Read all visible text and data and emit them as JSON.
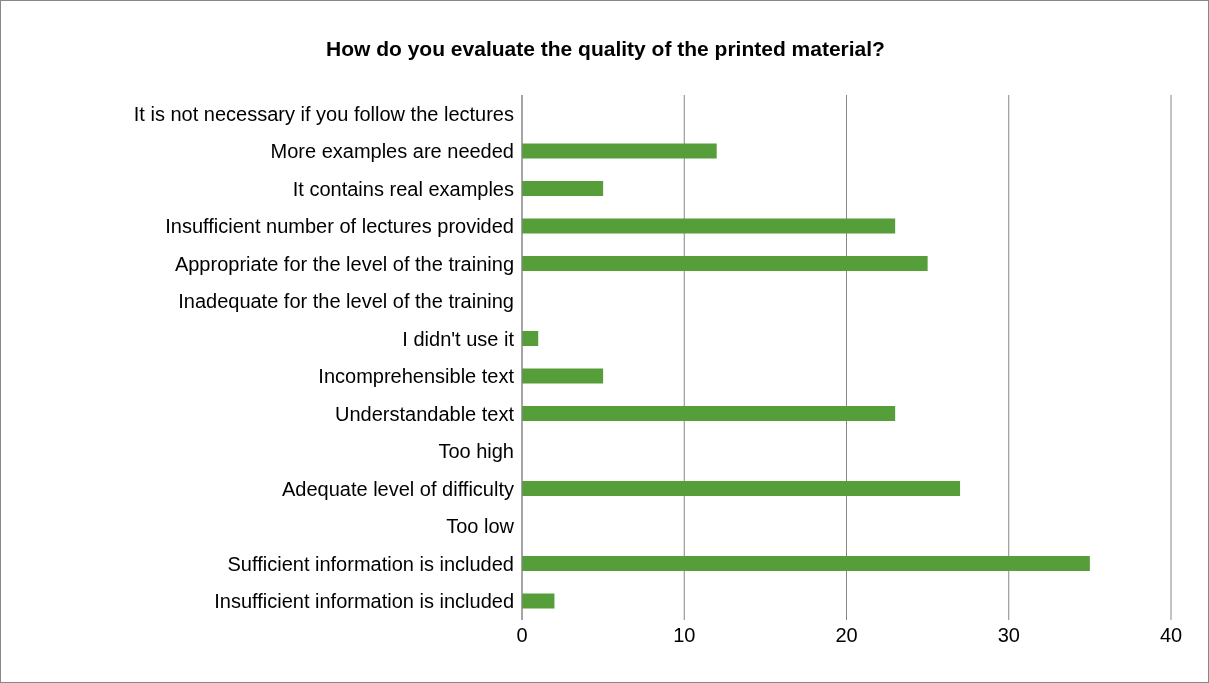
{
  "chart_data": {
    "type": "bar",
    "orientation": "horizontal",
    "title": "How do you evaluate the quality of the printed material?",
    "categories": [
      "It is not necessary if you follow the lectures",
      "More examples are needed",
      "It contains real examples",
      "Insufficient number of lectures provided",
      "Appropriate for the level of the training",
      "Inadequate for the level of the training",
      "I didn't use it",
      "Incomprehensible text",
      "Understandable text",
      "Too high",
      "Adequate level of difficulty",
      "Too low",
      "Sufficient information is included",
      "Insufficient information is included"
    ],
    "values": [
      0,
      12,
      5,
      23,
      25,
      0,
      1,
      5,
      23,
      0,
      27,
      0,
      35,
      2
    ],
    "color": "#559e3a",
    "xlim": [
      0,
      40
    ],
    "xticks": [
      0,
      10,
      20,
      30,
      40
    ],
    "grid": "x",
    "legend": false
  }
}
